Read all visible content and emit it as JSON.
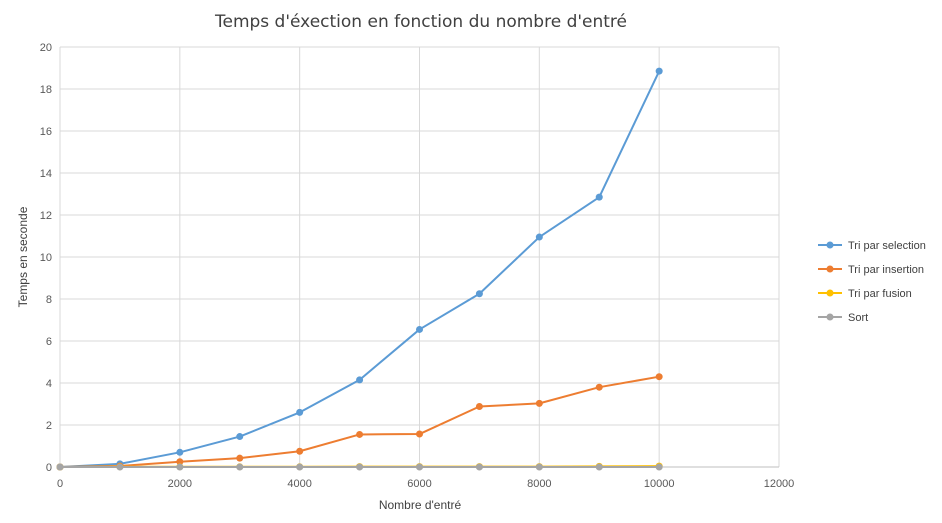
{
  "chart_data": {
    "type": "line",
    "title": "Temps d'éxection en fonction du nombre d'entré",
    "xlabel": "Nombre d'entré",
    "ylabel": "Temps en seconde",
    "xlim": [
      0,
      12000
    ],
    "ylim": [
      0,
      20
    ],
    "xticks": [
      0,
      2000,
      4000,
      6000,
      8000,
      10000,
      12000
    ],
    "yticks": [
      0,
      2,
      4,
      6,
      8,
      10,
      12,
      14,
      16,
      18,
      20
    ],
    "grid": true,
    "legend_position": "right",
    "x": [
      0,
      1000,
      2000,
      3000,
      4000,
      5000,
      6000,
      7000,
      8000,
      9000,
      10000
    ],
    "series": [
      {
        "name": "Tri par selection",
        "color": "#5B9BD5",
        "values": [
          0,
          0.15,
          0.7,
          1.45,
          2.6,
          4.15,
          6.55,
          8.25,
          10.95,
          12.85,
          18.85
        ]
      },
      {
        "name": "Tri par insertion",
        "color": "#ED7D31",
        "values": [
          0,
          0.05,
          0.25,
          0.42,
          0.75,
          1.55,
          1.57,
          2.88,
          3.03,
          3.8,
          4.3
        ]
      },
      {
        "name": "Tri par fusion",
        "color": "#FFC000",
        "values": [
          0,
          0.01,
          0.01,
          0.01,
          0.01,
          0.02,
          0.02,
          0.02,
          0.02,
          0.03,
          0.04
        ]
      },
      {
        "name": "Sort",
        "color": "#A5A5A5",
        "values": [
          0,
          0,
          0,
          0,
          0,
          0,
          0,
          0,
          0,
          0,
          0
        ]
      }
    ]
  }
}
